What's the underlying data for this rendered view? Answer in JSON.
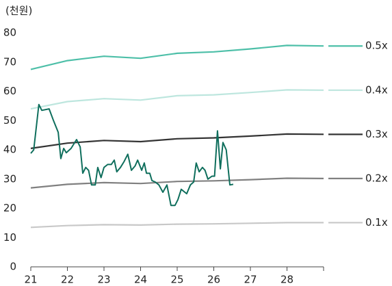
{
  "chart_data": {
    "type": "line",
    "unit_label": "(천원)",
    "xlim": [
      21,
      29
    ],
    "xticks": [
      21,
      22,
      23,
      24,
      25,
      26,
      27,
      28
    ],
    "ylim": [
      0,
      80
    ],
    "yticks": [
      0,
      10,
      20,
      30,
      40,
      50,
      60,
      70,
      80
    ],
    "series": [
      {
        "name": "0.5x",
        "color": "#4dbfa8",
        "x": [
          21,
          22,
          23,
          24,
          25,
          26,
          27,
          28,
          29
        ],
        "values": [
          67.5,
          70.5,
          72,
          71.3,
          73,
          73.5,
          74.5,
          75.7,
          75.5
        ]
      },
      {
        "name": "0.4x",
        "color": "#bde6de",
        "x": [
          21,
          22,
          23,
          24,
          25,
          26,
          27,
          28,
          29
        ],
        "values": [
          54,
          56.5,
          57.5,
          57,
          58.5,
          58.8,
          59.6,
          60.5,
          60.4
        ]
      },
      {
        "name": "0.3x",
        "color": "#333333",
        "x": [
          21,
          22,
          23,
          24,
          25,
          26,
          27,
          28,
          29
        ],
        "values": [
          40.5,
          42.3,
          43.2,
          42.8,
          43.8,
          44.1,
          44.7,
          45.4,
          45.3
        ]
      },
      {
        "name": "0.2x",
        "color": "#808080",
        "x": [
          21,
          22,
          23,
          24,
          25,
          26,
          27,
          28,
          29
        ],
        "values": [
          27,
          28.2,
          28.8,
          28.5,
          29.2,
          29.4,
          29.8,
          30.3,
          30.2
        ]
      },
      {
        "name": "0.1x",
        "color": "#c8c8c8",
        "x": [
          21,
          22,
          23,
          24,
          25,
          26,
          27,
          28,
          29
        ],
        "values": [
          13.5,
          14.1,
          14.4,
          14.3,
          14.6,
          14.7,
          14.9,
          15.1,
          15.1
        ]
      },
      {
        "color": "#0e6e5c",
        "x": [
          21,
          21.08,
          21.22,
          21.3,
          21.5,
          21.62,
          21.75,
          21.82,
          21.9,
          21.97,
          22.1,
          22.25,
          22.35,
          22.42,
          22.5,
          22.58,
          22.66,
          22.76,
          22.83,
          22.92,
          23.0,
          23.1,
          23.2,
          23.28,
          23.35,
          23.45,
          23.55,
          23.65,
          23.75,
          23.85,
          23.92,
          24.03,
          24.1,
          24.16,
          24.25,
          24.31,
          24.4,
          24.5,
          24.61,
          24.72,
          24.83,
          24.94,
          25.02,
          25.11,
          25.26,
          25.36,
          25.45,
          25.52,
          25.6,
          25.69,
          25.76,
          25.84,
          25.95,
          26.02,
          26.1,
          26.18,
          26.25,
          26.34,
          26.44,
          26.53
        ],
        "values": [
          38.8,
          40,
          55.5,
          53.5,
          54,
          50,
          46,
          37,
          40.5,
          39,
          40.5,
          43.5,
          41,
          32,
          34,
          33,
          28,
          28,
          34,
          30.5,
          34,
          35,
          35,
          36.5,
          32.5,
          34,
          36,
          38.5,
          33,
          34.5,
          36.5,
          33,
          35.5,
          32,
          32,
          29.5,
          29,
          28,
          25.5,
          28,
          21,
          21,
          23,
          26.5,
          25,
          28,
          29,
          35.5,
          32.5,
          34,
          33,
          30,
          31,
          31,
          46.5,
          33.5,
          42.5,
          40,
          28,
          28.2
        ]
      }
    ]
  }
}
